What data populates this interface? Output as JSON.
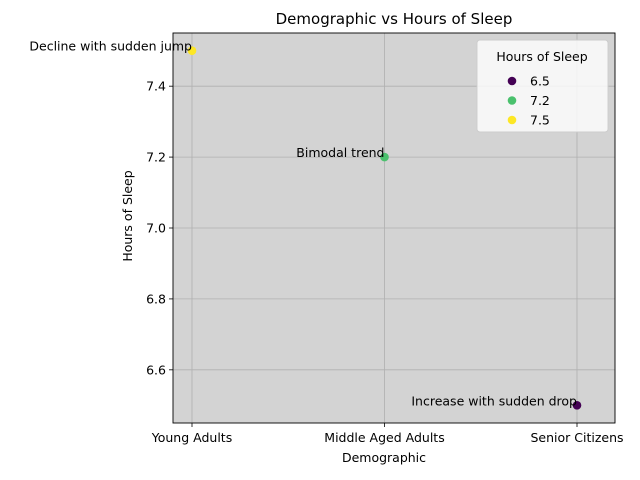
{
  "chart_data": {
    "type": "scatter",
    "title": "Demographic vs Hours of Sleep",
    "xlabel": "Demographic",
    "ylabel": "Hours of Sleep",
    "categories": [
      "Young Adults",
      "Middle Aged Adults",
      "Senior Citizens"
    ],
    "values": [
      7.5,
      7.2,
      6.5
    ],
    "colors": [
      "#fde725",
      "#4ac16d",
      "#440154"
    ],
    "annotations": [
      "Decline with sudden jump",
      "Bimodal trend",
      "Increase with sudden drop"
    ],
    "yticks": [
      "6.6",
      "6.8",
      "7.0",
      "7.2",
      "7.4"
    ],
    "ylim": [
      6.45,
      7.55
    ],
    "grid": true,
    "plot_background": "#d3d3d3",
    "legend": {
      "title": "Hours of Sleep",
      "placement": "top-right",
      "entries": [
        {
          "label": "6.5",
          "color": "#440154"
        },
        {
          "label": "7.2",
          "color": "#4ac16d"
        },
        {
          "label": "7.5",
          "color": "#fde725"
        }
      ]
    }
  }
}
